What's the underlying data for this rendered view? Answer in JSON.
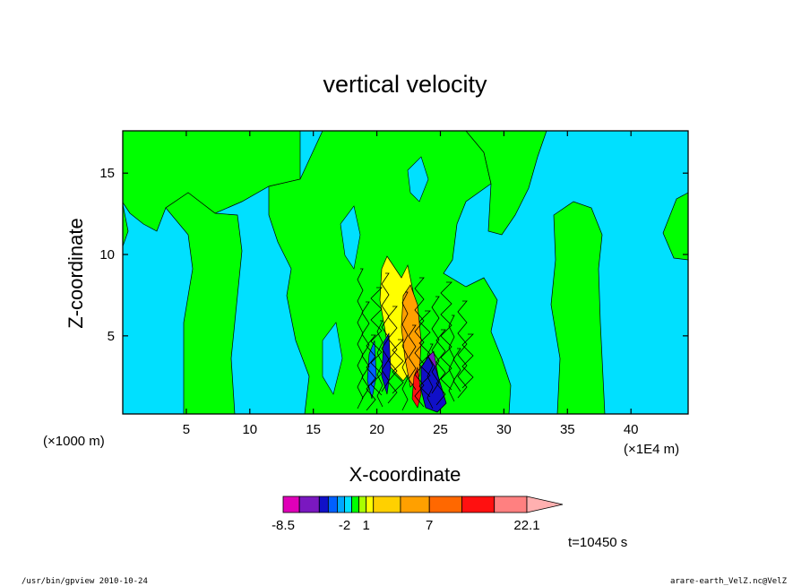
{
  "chart_data": {
    "type": "heatmap",
    "title": "vertical velocity",
    "xlabel": "X-coordinate",
    "ylabel": "Z-coordinate",
    "x_units_left": "(×1000 m)",
    "x_units_right": "(×1E4 m)",
    "xlim": [
      0,
      44.5
    ],
    "ylim": [
      0.2,
      17.6
    ],
    "x_ticks": [
      5,
      10,
      15,
      20,
      25,
      30,
      35,
      40
    ],
    "y_ticks": [
      5,
      10,
      15
    ],
    "colorbar": {
      "levels": [
        -8.5,
        -7,
        -5.5,
        -4,
        -3,
        -2,
        -1,
        0,
        1,
        2,
        4,
        7,
        10,
        13,
        16,
        22.1
      ],
      "colors": [
        "#e000b8",
        "#7a18c0",
        "#1010c8",
        "#0060ff",
        "#00a8ff",
        "#00e0ff",
        "#00ff00",
        "#a8ff00",
        "#ffff00",
        "#ffd000",
        "#ffa000",
        "#ff6800",
        "#ff1010",
        "#ff8080",
        "#ffb0b0"
      ],
      "labels": [
        "-8.5",
        "-2",
        "1",
        "7",
        "22.1"
      ],
      "label_values": [
        -8.5,
        -2,
        1,
        7,
        22.1
      ]
    },
    "time_label": "t=10450 s"
  },
  "footer": {
    "left": "/usr/bin/gpview  2010-10-24",
    "right": "arare-earth_VelZ.nc@VelZ"
  }
}
